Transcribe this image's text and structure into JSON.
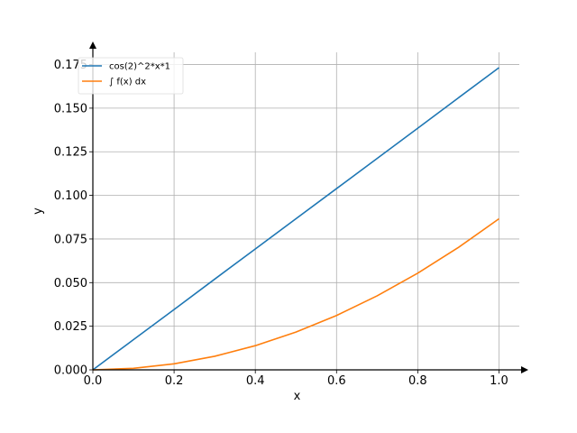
{
  "chart_data": {
    "type": "line",
    "title": "",
    "xlabel": "x",
    "ylabel": "y",
    "xlim": [
      0.0,
      1.05
    ],
    "ylim": [
      0.0,
      0.182
    ],
    "xticks": [
      0.0,
      0.2,
      0.4,
      0.6,
      0.8,
      1.0
    ],
    "xtick_labels": [
      "0.0",
      "0.2",
      "0.4",
      "0.6",
      "0.8",
      "1.0"
    ],
    "yticks": [
      0.0,
      0.025,
      0.05,
      0.075,
      0.1,
      0.125,
      0.15,
      0.175
    ],
    "ytick_labels": [
      "0.000",
      "0.025",
      "0.050",
      "0.075",
      "0.100",
      "0.125",
      "0.150",
      "0.175"
    ],
    "grid": true,
    "legend_position": "top-left",
    "series": [
      {
        "name": "cos(2)^2*x*1",
        "color": "#1f77b4",
        "x": [
          0.0,
          0.1,
          0.2,
          0.3,
          0.4,
          0.5,
          0.6,
          0.7,
          0.8,
          0.9,
          1.0
        ],
        "y": [
          0.0,
          0.0173,
          0.0346,
          0.052,
          0.0693,
          0.0866,
          0.1039,
          0.1212,
          0.1385,
          0.1559,
          0.1732
        ]
      },
      {
        "name": "∫ f(x) dx",
        "color": "#ff7f0e",
        "x": [
          0.0,
          0.1,
          0.2,
          0.3,
          0.4,
          0.5,
          0.6,
          0.7,
          0.8,
          0.9,
          1.0
        ],
        "y": [
          0.0,
          0.00087,
          0.00346,
          0.00779,
          0.01385,
          0.02165,
          0.03117,
          0.04243,
          0.05541,
          0.07013,
          0.08659
        ]
      }
    ]
  }
}
